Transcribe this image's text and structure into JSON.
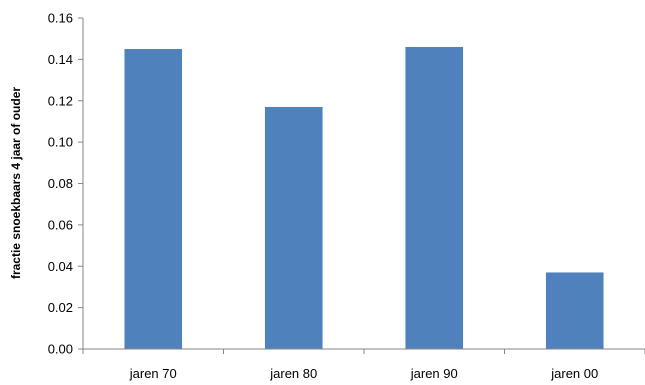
{
  "chart_data": {
    "type": "bar",
    "title": "",
    "xlabel": "",
    "ylabel": "fractie snoekbaars 4 jaar of ouder",
    "categories": [
      "jaren 70",
      "jaren 80",
      "jaren 90",
      "jaren 00"
    ],
    "values": [
      0.145,
      0.117,
      0.146,
      0.037
    ],
    "ylim": [
      0,
      0.16
    ],
    "yticks": [
      "0.00",
      "0.02",
      "0.04",
      "0.06",
      "0.08",
      "0.10",
      "0.12",
      "0.14",
      "0.16"
    ],
    "grid": false,
    "legend": "none",
    "bar_color": "#4F81BD",
    "axis_color": "#868686"
  }
}
